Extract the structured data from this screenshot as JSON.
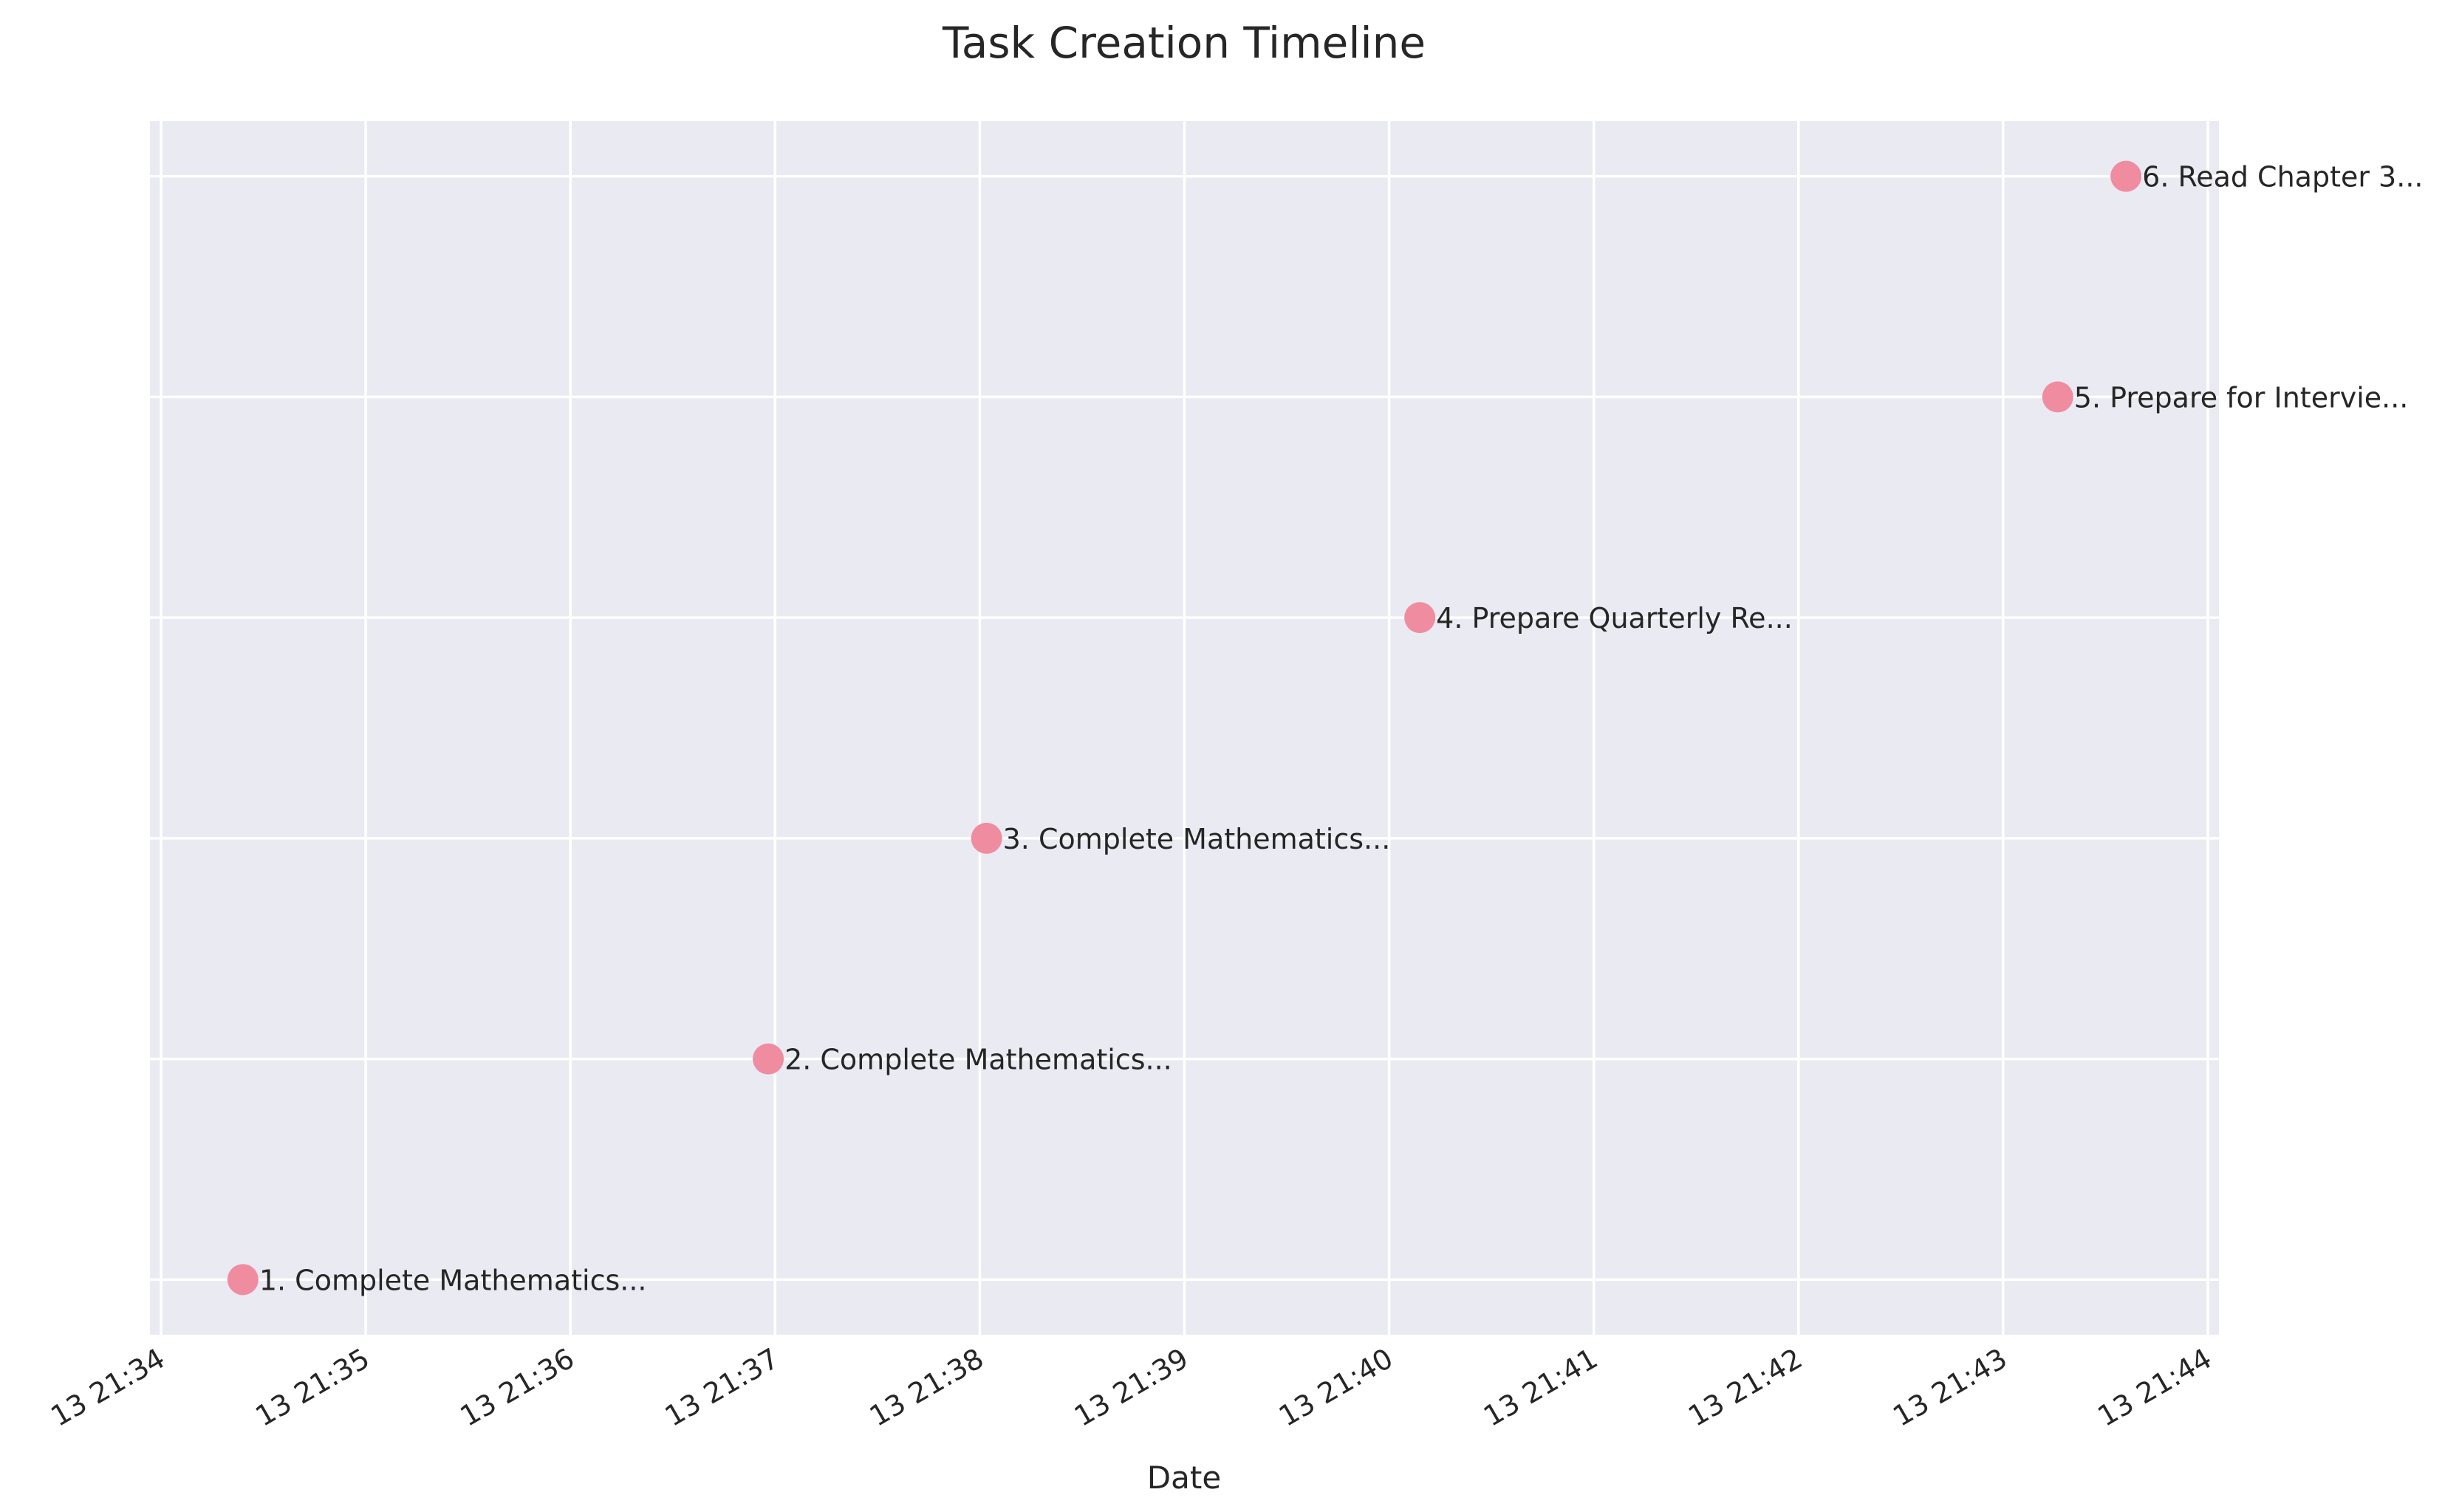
{
  "chart_data": {
    "type": "scatter",
    "title": "Task Creation Timeline",
    "xlabel": "Date",
    "ylabel": "",
    "x_axis": {
      "kind": "time",
      "range": [
        "13 21:34:00",
        "13 21:44:00"
      ],
      "tick_labels": [
        "13 21:34",
        "13 21:35",
        "13 21:36",
        "13 21:37",
        "13 21:38",
        "13 21:39",
        "13 21:40",
        "13 21:41",
        "13 21:42",
        "13 21:43",
        "13 21:44"
      ]
    },
    "y_axis": {
      "range": [
        0.75,
        6.25
      ],
      "tick_labels_shown": false
    },
    "grid": true,
    "marker_color": "#f08ca0",
    "background_color": "#eaeaf2",
    "points": [
      {
        "x": "13 21:34:24",
        "y": 1,
        "label": "1. Complete Mathematics..."
      },
      {
        "x": "13 21:36:58",
        "y": 2,
        "label": "2. Complete Mathematics..."
      },
      {
        "x": "13 21:38:02",
        "y": 3,
        "label": "3. Complete Mathematics..."
      },
      {
        "x": "13 21:40:09",
        "y": 4,
        "label": "4. Prepare Quarterly Re..."
      },
      {
        "x": "13 21:43:16",
        "y": 5,
        "label": "5. Prepare for Intervie..."
      },
      {
        "x": "13 21:43:36",
        "y": 6,
        "label": "6. Read Chapter 3..."
      }
    ]
  }
}
